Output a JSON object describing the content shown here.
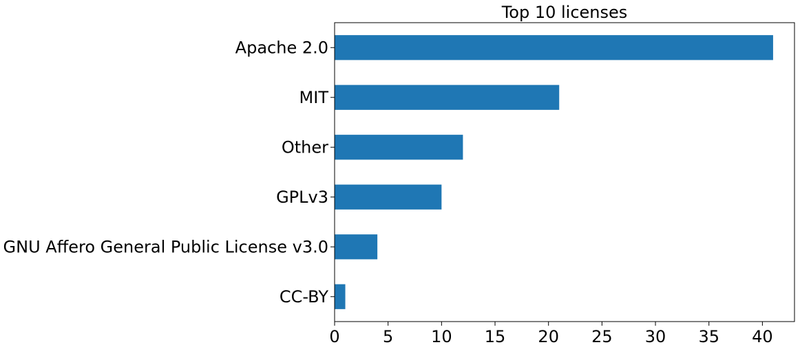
{
  "chart_data": {
    "type": "bar",
    "orientation": "horizontal",
    "title": "Top 10 licenses",
    "xlabel": "",
    "ylabel": "",
    "categories": [
      "Apache 2.0",
      "MIT",
      "Other",
      "GPLv3",
      "GNU Affero General Public License v3.0",
      "CC-BY"
    ],
    "values": [
      41,
      21,
      12,
      10,
      4,
      1
    ],
    "xlim": [
      0,
      43
    ],
    "xticks": [
      0,
      5,
      10,
      15,
      20,
      25,
      30,
      35,
      40
    ],
    "grid": false,
    "legend": "none",
    "bar_color": "#1f77b4"
  }
}
